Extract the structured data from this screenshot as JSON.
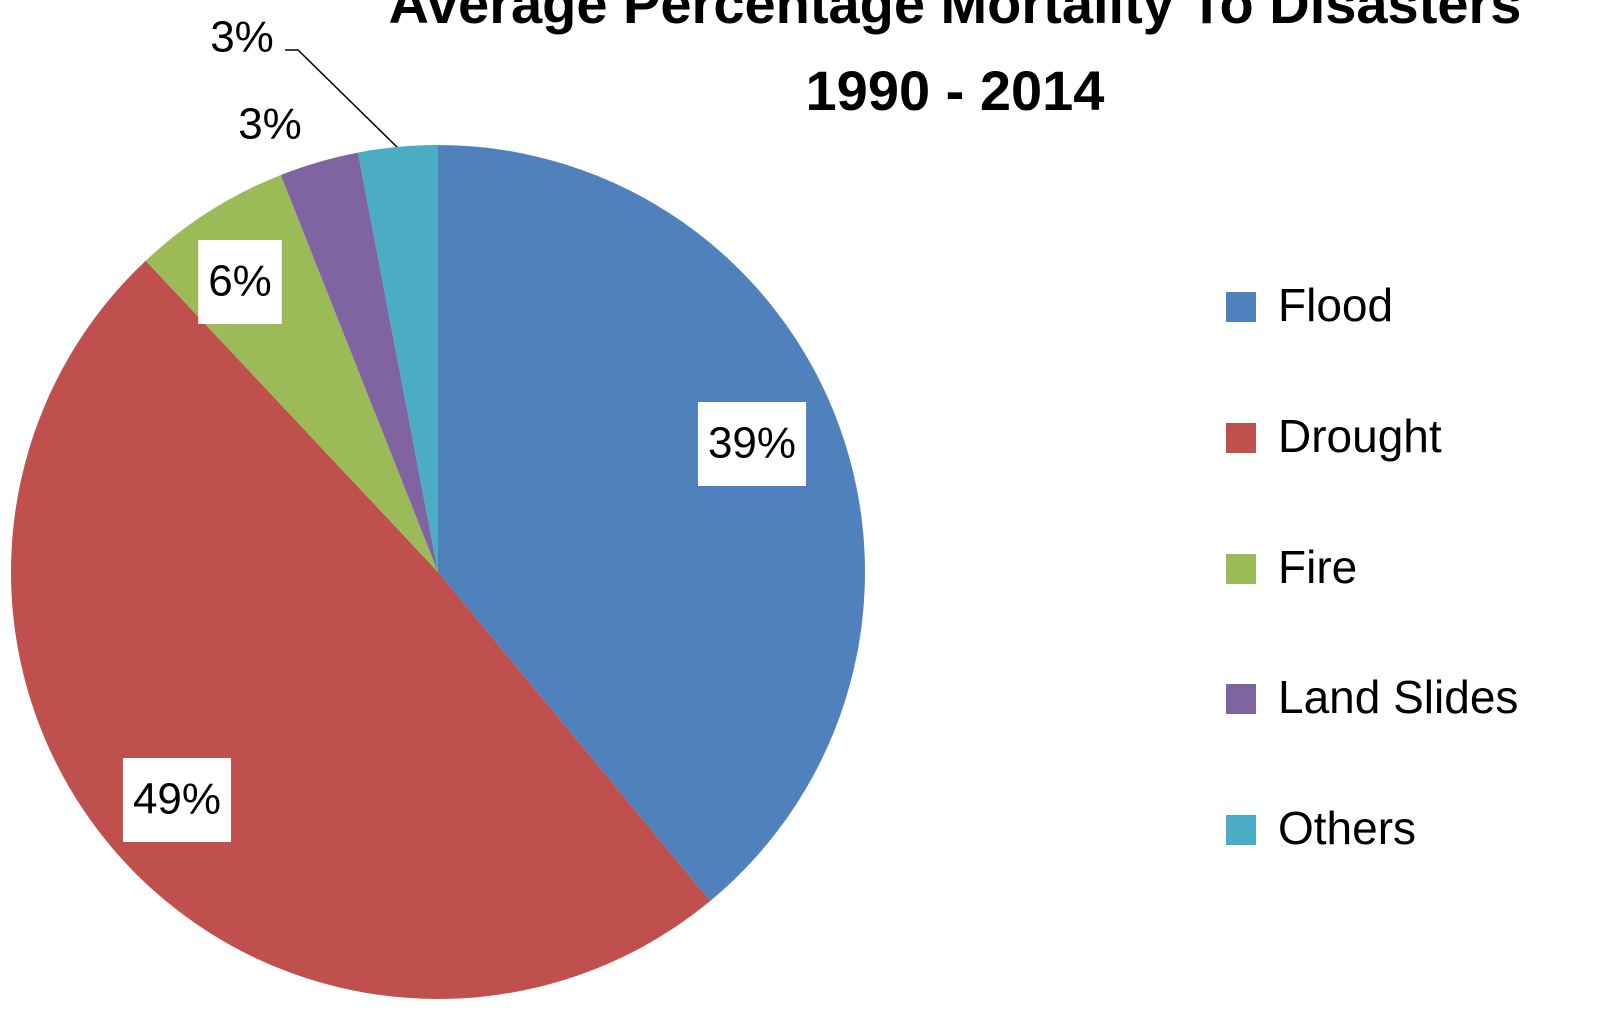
{
  "chart_data": {
    "type": "pie",
    "title": [
      "Average Percentage Mortality To Disasters",
      "1990 - 2014"
    ],
    "categories": [
      "Flood",
      "Drought",
      "Fire",
      "Land Slides",
      "Others"
    ],
    "values": [
      39,
      49,
      6,
      3,
      3
    ],
    "value_labels": [
      "39%",
      "49%",
      "6%",
      "3%",
      "3%"
    ],
    "colors": [
      "#4f81bd",
      "#c0504d",
      "#9bbb59",
      "#8064a2",
      "#4bacc6"
    ],
    "legend": "right"
  }
}
